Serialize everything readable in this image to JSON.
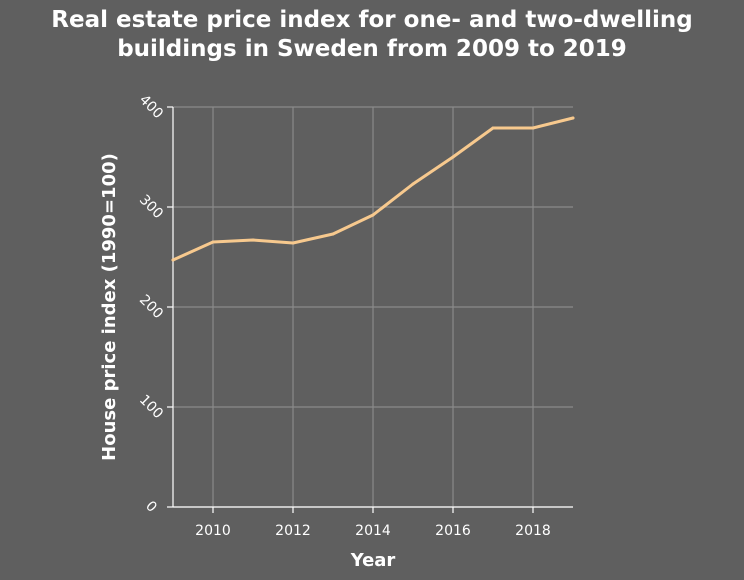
{
  "chart_data": {
    "type": "line",
    "title_line1": "Real estate price index for one- and two-dwelling",
    "title_line2": "buildings in Sweden from 2009 to 2019",
    "xlabel": "Year",
    "ylabel": "House price index (1990=100)",
    "xlim": [
      2009,
      2019
    ],
    "ylim": [
      0,
      400
    ],
    "x_ticks": [
      2010,
      2012,
      2014,
      2016,
      2018
    ],
    "y_ticks": [
      0,
      100,
      200,
      300,
      400
    ],
    "grid": true,
    "series": [
      {
        "x": [
          2009,
          2010,
          2011,
          2012,
          2013,
          2014,
          2015,
          2016,
          2017,
          2018,
          2019
        ],
        "values": [
          247,
          265,
          267,
          264,
          273,
          292,
          323,
          350,
          379,
          379,
          389
        ]
      }
    ],
    "colors": {
      "background": "#5f5f5f",
      "grid": "#8a8a8a",
      "axis": "#ffffff",
      "line": "#f7c98e"
    }
  }
}
